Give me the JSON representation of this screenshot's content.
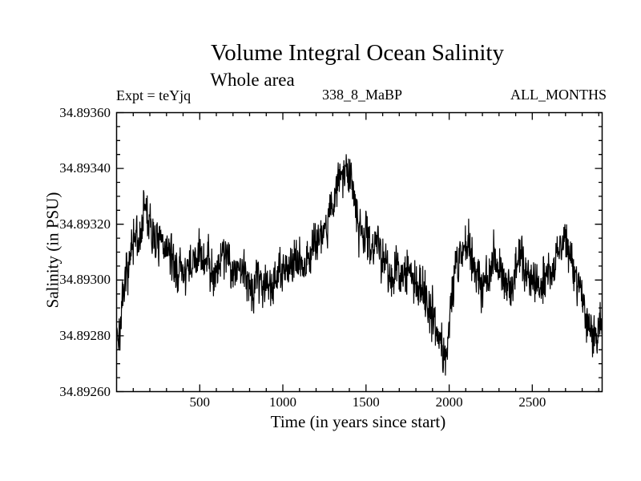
{
  "chart_data": {
    "type": "line",
    "title": "Volume Integral Ocean Salinity",
    "subtitle": "Whole area",
    "annotations": {
      "left": "Expt = teYjq",
      "center": "338_8_MaBP",
      "right": "ALL_MONTHS"
    },
    "xlabel": "Time (in years since start)",
    "ylabel": "Salinity (in PSU)",
    "xlim": [
      0,
      2920
    ],
    "ylim": [
      34.8926,
      34.8936
    ],
    "x_major_ticks": [
      500,
      1000,
      1500,
      2000,
      2500
    ],
    "x_tick_labels": [
      "500",
      "1000",
      "1500",
      "2000",
      "2500"
    ],
    "x_minor_step": 100,
    "y_major_ticks": [
      34.8926,
      34.8928,
      34.893,
      34.8932,
      34.8934,
      34.8936
    ],
    "y_tick_labels": [
      "34.89260",
      "34.89280",
      "34.89300",
      "34.89320",
      "34.89340",
      "34.89360"
    ],
    "y_minor_step": 5e-05,
    "grid": false,
    "background_color": "#ffffff",
    "axis_color": "#000000",
    "series": [
      {
        "name": "volume-integral-ocean-salinity",
        "color": "#000000",
        "n_points": 1460,
        "seed": 7,
        "noise_amp": 0.00012,
        "slow_noise_amp": 3e-05,
        "trend_points": [
          [
            0,
            34.89285
          ],
          [
            15,
            34.89278
          ],
          [
            40,
            34.89292
          ],
          [
            80,
            34.89305
          ],
          [
            120,
            34.89312
          ],
          [
            150,
            34.89318
          ],
          [
            170,
            34.89326
          ],
          [
            190,
            34.89318
          ],
          [
            220,
            34.89314
          ],
          [
            260,
            34.89312
          ],
          [
            300,
            34.8931
          ],
          [
            340,
            34.89308
          ],
          [
            380,
            34.89305
          ],
          [
            420,
            34.893
          ],
          [
            460,
            34.89305
          ],
          [
            500,
            34.89309
          ],
          [
            550,
            34.89306
          ],
          [
            600,
            34.89303
          ],
          [
            640,
            34.8931
          ],
          [
            680,
            34.89307
          ],
          [
            720,
            34.89304
          ],
          [
            760,
            34.89303
          ],
          [
            800,
            34.89299
          ],
          [
            840,
            34.89302
          ],
          [
            880,
            34.893
          ],
          [
            920,
            34.89299
          ],
          [
            960,
            34.89301
          ],
          [
            1000,
            34.89303
          ],
          [
            1050,
            34.89305
          ],
          [
            1100,
            34.89307
          ],
          [
            1150,
            34.89309
          ],
          [
            1200,
            34.89313
          ],
          [
            1250,
            34.89319
          ],
          [
            1300,
            34.89328
          ],
          [
            1340,
            34.89336
          ],
          [
            1375,
            34.89341
          ],
          [
            1405,
            34.89336
          ],
          [
            1440,
            34.89328
          ],
          [
            1480,
            34.89318
          ],
          [
            1520,
            34.89313
          ],
          [
            1560,
            34.89311
          ],
          [
            1600,
            34.89308
          ],
          [
            1650,
            34.89304
          ],
          [
            1700,
            34.89302
          ],
          [
            1750,
            34.89304
          ],
          [
            1800,
            34.89299
          ],
          [
            1850,
            34.89297
          ],
          [
            1900,
            34.89289
          ],
          [
            1945,
            34.89277
          ],
          [
            1975,
            34.89274
          ],
          [
            2005,
            34.89288
          ],
          [
            2040,
            34.89305
          ],
          [
            2075,
            34.89313
          ],
          [
            2110,
            34.89312
          ],
          [
            2150,
            34.89306
          ],
          [
            2190,
            34.89297
          ],
          [
            2230,
            34.89299
          ],
          [
            2270,
            34.89312
          ],
          [
            2300,
            34.89304
          ],
          [
            2340,
            34.89299
          ],
          [
            2380,
            34.89299
          ],
          [
            2415,
            34.89313
          ],
          [
            2450,
            34.89306
          ],
          [
            2490,
            34.893
          ],
          [
            2540,
            34.89297
          ],
          [
            2590,
            34.89299
          ],
          [
            2640,
            34.89308
          ],
          [
            2690,
            34.89314
          ],
          [
            2730,
            34.89307
          ],
          [
            2770,
            34.89299
          ],
          [
            2810,
            34.89291
          ],
          [
            2850,
            34.89283
          ],
          [
            2885,
            34.8928
          ],
          [
            2905,
            34.89286
          ],
          [
            2920,
            34.89289
          ]
        ]
      }
    ]
  }
}
